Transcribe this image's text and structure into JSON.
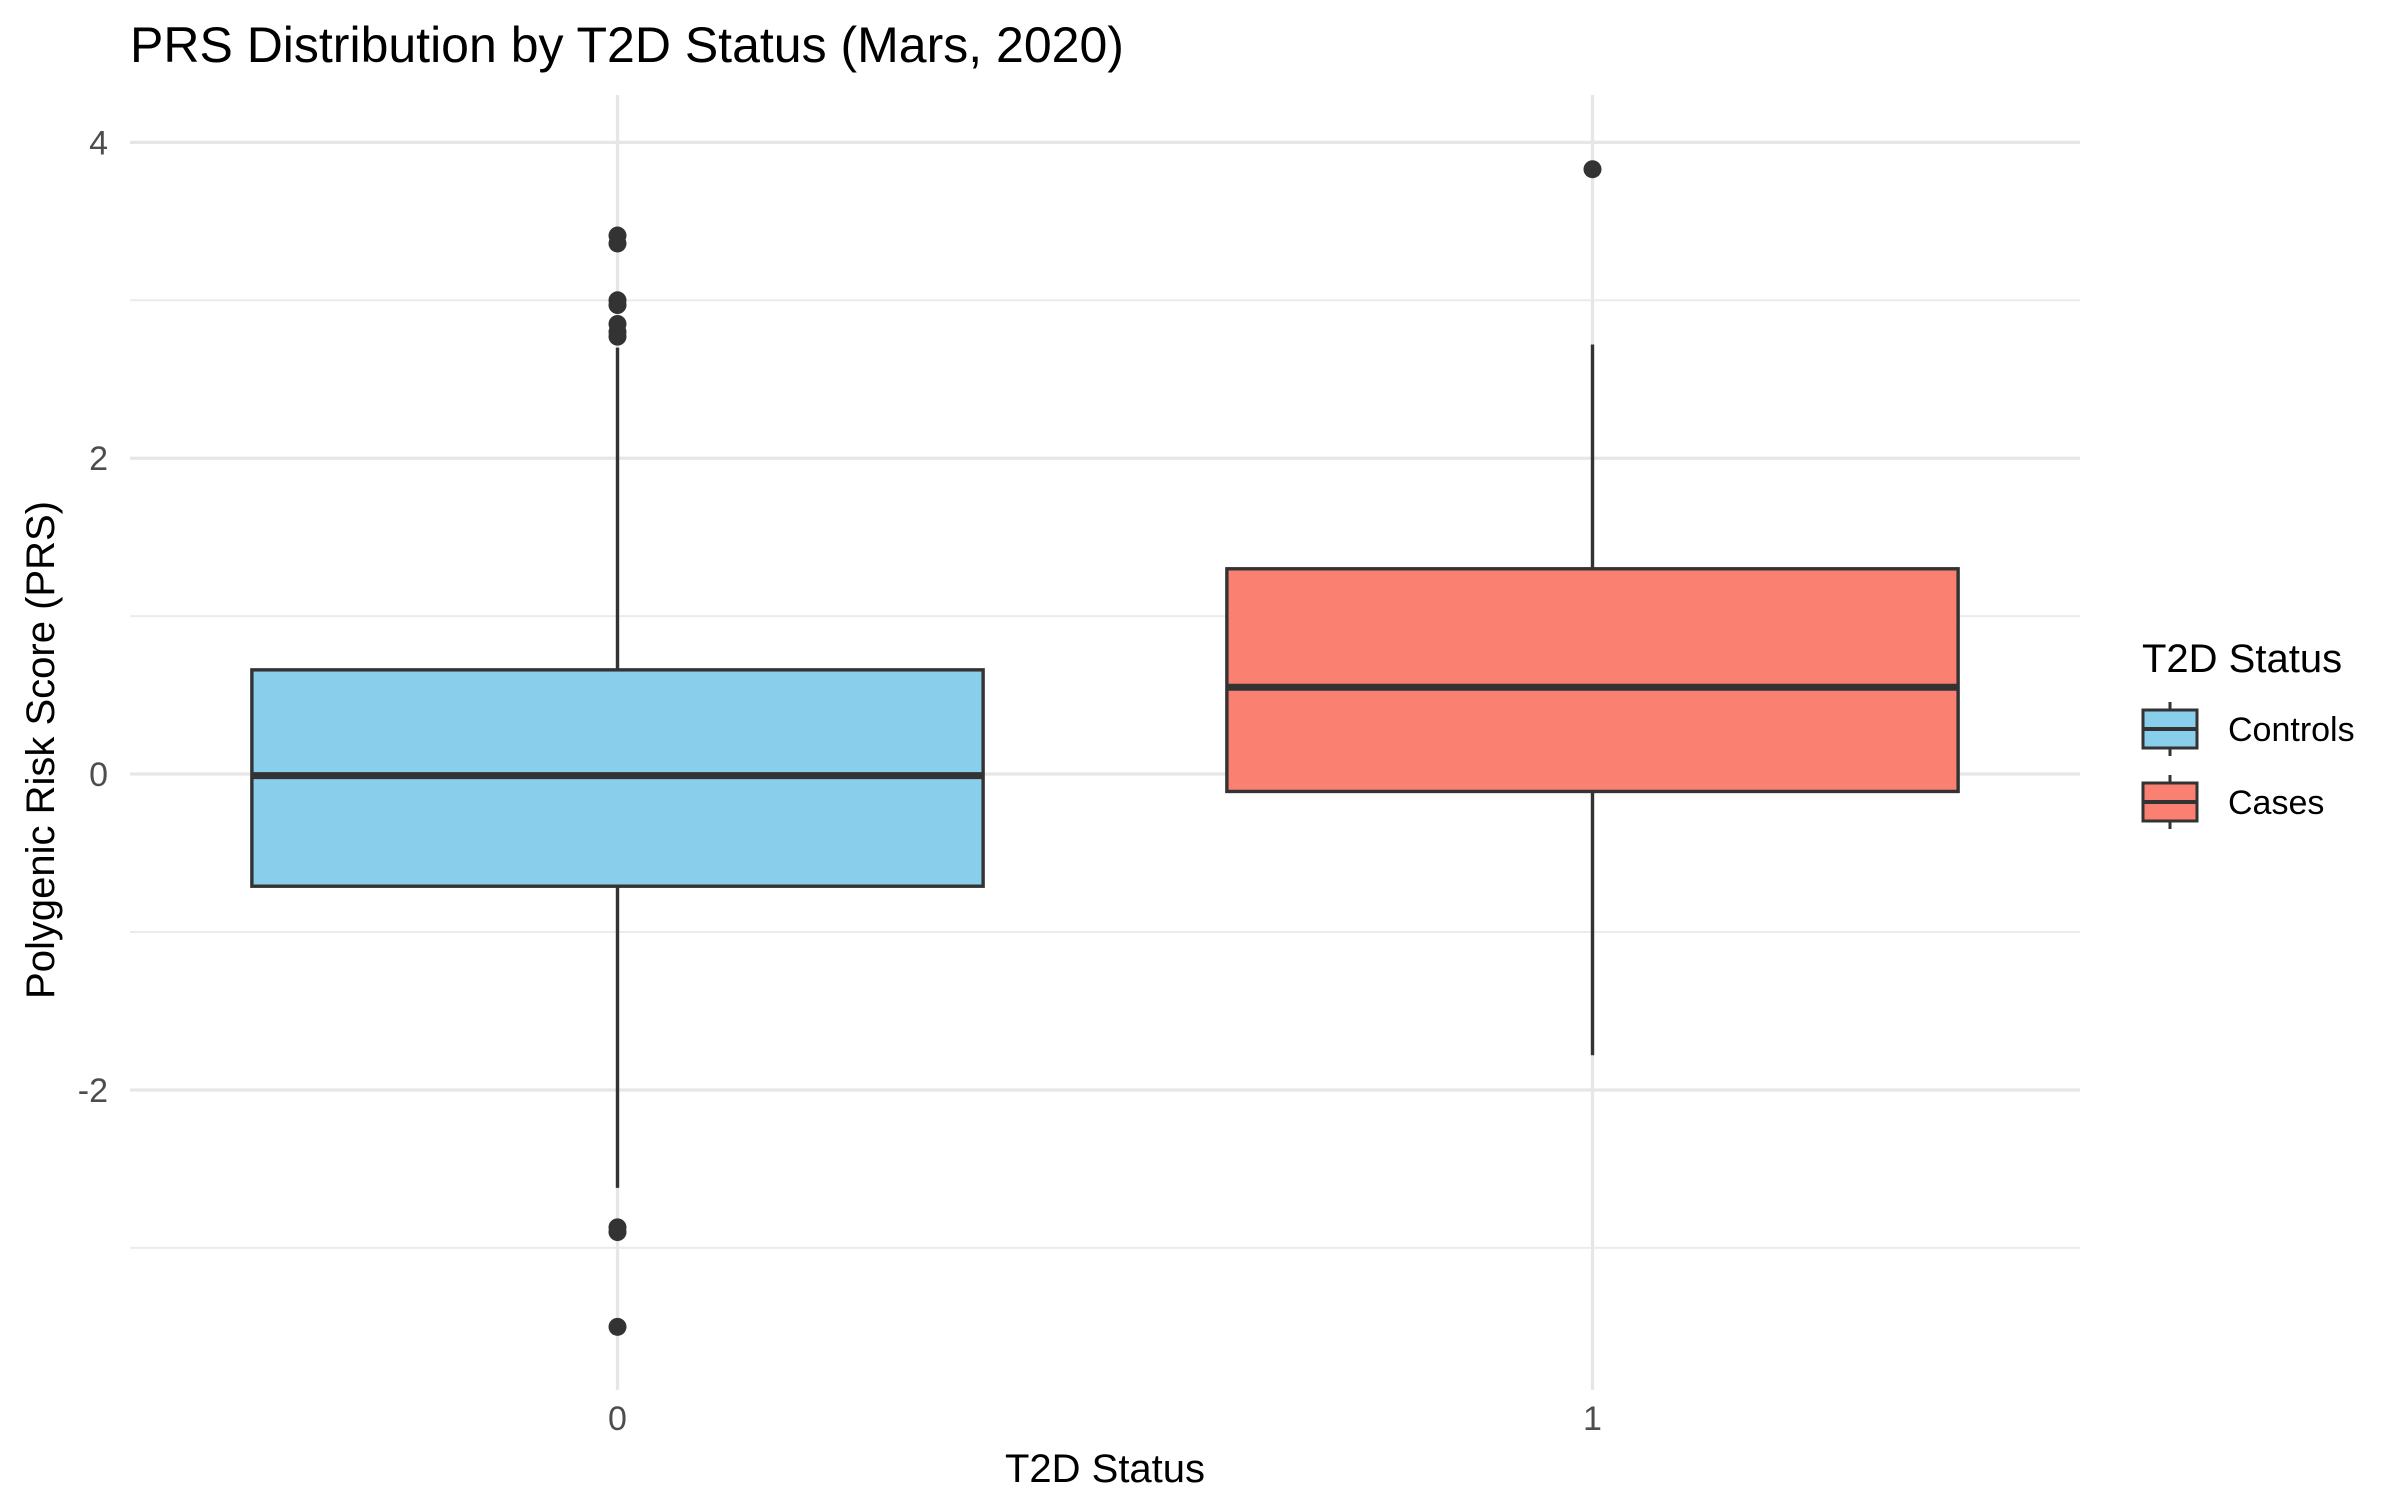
{
  "chart_data": {
    "type": "boxplot",
    "title": "PRS Distribution by T2D Status (Mars, 2020)",
    "xlabel": "T2D Status",
    "ylabel": "Polygenic Risk Score (PRS)",
    "ylim": [
      -3.9,
      4.3
    ],
    "yticks": [
      {
        "value": -2,
        "label": "-2"
      },
      {
        "value": 0,
        "label": "0"
      },
      {
        "value": 2,
        "label": "2"
      },
      {
        "value": 4,
        "label": "4"
      }
    ],
    "grid": true,
    "legend": {
      "title": "T2D Status",
      "placement": "right",
      "entries": [
        {
          "label": "Controls",
          "color": "#89CEEA"
        },
        {
          "label": "Cases",
          "color": "#FA8072"
        }
      ]
    },
    "categories": [
      "0",
      "1"
    ],
    "boxes": [
      {
        "category": "0",
        "name": "Controls",
        "color": "#89CEEA",
        "whisker_low": -2.62,
        "q1": -0.71,
        "median": -0.01,
        "q3": 0.66,
        "whisker_high": 2.7,
        "outliers": [
          3.41,
          3.36,
          3.0,
          2.97,
          2.85,
          2.8,
          2.77,
          -2.87,
          -2.9,
          -3.5
        ]
      },
      {
        "category": "1",
        "name": "Cases",
        "color": "#FA8072",
        "whisker_low": -1.78,
        "q1": -0.11,
        "median": 0.55,
        "q3": 1.3,
        "whisker_high": 2.72,
        "outliers": [
          3.83
        ]
      }
    ]
  }
}
